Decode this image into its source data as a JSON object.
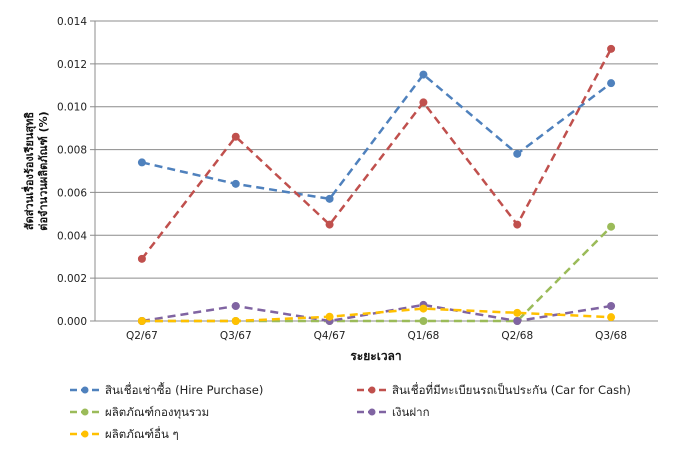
{
  "chart_data": {
    "type": "line",
    "title": "",
    "xlabel": "ระยะเวลา",
    "ylabel": [
      "สัดส่วนเรื่องร้องเรียนสุทธิ",
      "ต่อจำนวนผลิตภัณฑ์ (%)"
    ],
    "ylim": [
      0,
      0.014
    ],
    "yticks": [
      "0.000",
      "0.002",
      "0.004",
      "0.006",
      "0.008",
      "0.010",
      "0.012",
      "0.014"
    ],
    "grid": true,
    "legend": "bottom",
    "categories": [
      "Q2/67",
      "Q3/67",
      "Q4/67",
      "Q1/68",
      "Q2/68",
      "Q3/68"
    ],
    "series": [
      {
        "name": "สินเชื่อเช่าซื้อ (Hire Purchase)",
        "color": "#4F81BD",
        "values": [
          0.0074,
          0.0064,
          0.0057,
          0.0115,
          0.0078,
          0.0111
        ]
      },
      {
        "name": "สินเชื่อที่มีทะเบียนรถเป็นประกัน (Car for Cash)",
        "color": "#C0504D",
        "values": [
          0.0029,
          0.0086,
          0.0045,
          0.0102,
          0.0045,
          0.0127
        ]
      },
      {
        "name": "ผลิตภัณฑ์กองทุนรวม",
        "color": "#9BBB59",
        "values": [
          0,
          0,
          0,
          0,
          0,
          0.0044
        ]
      },
      {
        "name": "เงินฝาก",
        "color": "#8064A2",
        "values": [
          0,
          0.0007,
          0,
          0.00075,
          0,
          0.0007
        ]
      },
      {
        "name": "ผลิตภัณฑ์อื่น ๆ",
        "color": "#FFC000",
        "values": [
          0,
          0,
          0.0002,
          0.00058,
          0.00038,
          0.00018
        ]
      }
    ]
  }
}
